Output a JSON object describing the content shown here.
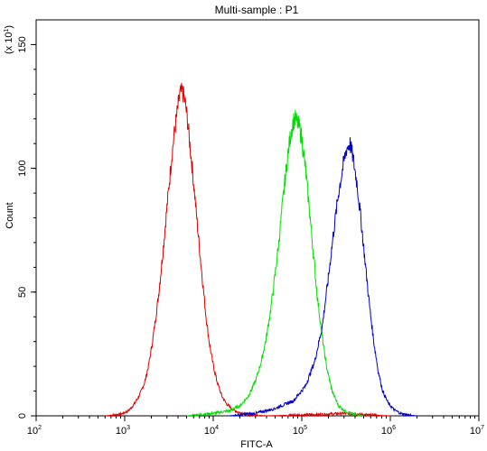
{
  "chart_data": {
    "type": "line",
    "title": "Multi-sample : P1",
    "xlabel": "FITC-A",
    "ylabel": "Count",
    "y_multiplier_label": {
      "prefix": "(x 10",
      "exp": "1",
      "suffix": ")"
    },
    "x_scale": "log",
    "xlim": [
      100,
      10000000
    ],
    "ylim": [
      0,
      160
    ],
    "x_ticks": [
      {
        "base": "10",
        "exp": "2",
        "value": 100
      },
      {
        "base": "10",
        "exp": "3",
        "value": 1000
      },
      {
        "base": "10",
        "exp": "4",
        "value": 10000
      },
      {
        "base": "10",
        "exp": "5",
        "value": 100000
      },
      {
        "base": "10",
        "exp": "6",
        "value": 1000000
      },
      {
        "base": "10",
        "exp": "7",
        "value": 10000000
      }
    ],
    "y_ticks": [
      0,
      50,
      100,
      150
    ],
    "grid": false,
    "series": [
      {
        "color": "#dd0000",
        "points": [
          [
            600,
            0
          ],
          [
            900,
            0.6
          ],
          [
            1100,
            2
          ],
          [
            1300,
            5
          ],
          [
            1500,
            9
          ],
          [
            1700,
            14
          ],
          [
            1900,
            22
          ],
          [
            2100,
            32
          ],
          [
            2400,
            48
          ],
          [
            2700,
            66
          ],
          [
            3000,
            84
          ],
          [
            3300,
            100
          ],
          [
            3600,
            113
          ],
          [
            3900,
            122
          ],
          [
            4200,
            130
          ],
          [
            4500,
            131
          ],
          [
            4800,
            127
          ],
          [
            5100,
            120
          ],
          [
            5400,
            111
          ],
          [
            5800,
            100
          ],
          [
            6300,
            86
          ],
          [
            6900,
            70
          ],
          [
            7600,
            54
          ],
          [
            8300,
            40
          ],
          [
            9000,
            30
          ],
          [
            9800,
            22
          ],
          [
            11000,
            14
          ],
          [
            12500,
            8
          ],
          [
            14000,
            5
          ],
          [
            16000,
            3
          ],
          [
            19000,
            1.5
          ],
          [
            25000,
            0.5
          ],
          [
            40000,
            0
          ],
          [
            150000,
            0.5
          ],
          [
            300000,
            1
          ],
          [
            600000,
            0.3
          ],
          [
            1000000,
            0
          ]
        ]
      },
      {
        "color": "#00dd00",
        "points": [
          [
            5000,
            0
          ],
          [
            10000,
            1
          ],
          [
            15000,
            2
          ],
          [
            20000,
            4
          ],
          [
            25000,
            8
          ],
          [
            30000,
            14
          ],
          [
            35000,
            22
          ],
          [
            40000,
            32
          ],
          [
            45000,
            44
          ],
          [
            50000,
            57
          ],
          [
            55000,
            70
          ],
          [
            60000,
            84
          ],
          [
            65000,
            96
          ],
          [
            70000,
            106
          ],
          [
            75000,
            114
          ],
          [
            80000,
            119
          ],
          [
            85000,
            120
          ],
          [
            90000,
            118
          ],
          [
            95000,
            116
          ],
          [
            100000,
            112
          ],
          [
            110000,
            100
          ],
          [
            120000,
            86
          ],
          [
            135000,
            66
          ],
          [
            150000,
            48
          ],
          [
            170000,
            32
          ],
          [
            190000,
            20
          ],
          [
            220000,
            10
          ],
          [
            260000,
            4
          ],
          [
            320000,
            1.5
          ],
          [
            400000,
            0.5
          ],
          [
            500000,
            0
          ]
        ]
      },
      {
        "color": "#0000cc",
        "points": [
          [
            15000,
            0
          ],
          [
            30000,
            1
          ],
          [
            50000,
            3
          ],
          [
            80000,
            6
          ],
          [
            110000,
            12
          ],
          [
            140000,
            22
          ],
          [
            170000,
            36
          ],
          [
            200000,
            56
          ],
          [
            230000,
            75
          ],
          [
            260000,
            90
          ],
          [
            290000,
            100
          ],
          [
            320000,
            108
          ],
          [
            350000,
            110
          ],
          [
            380000,
            104
          ],
          [
            420000,
            94
          ],
          [
            470000,
            78
          ],
          [
            520000,
            62
          ],
          [
            580000,
            45
          ],
          [
            650000,
            30
          ],
          [
            730000,
            18
          ],
          [
            820000,
            10
          ],
          [
            950000,
            5
          ],
          [
            1100000,
            2.5
          ],
          [
            1300000,
            1
          ],
          [
            1600000,
            0.3
          ],
          [
            2000000,
            0
          ]
        ]
      }
    ]
  }
}
